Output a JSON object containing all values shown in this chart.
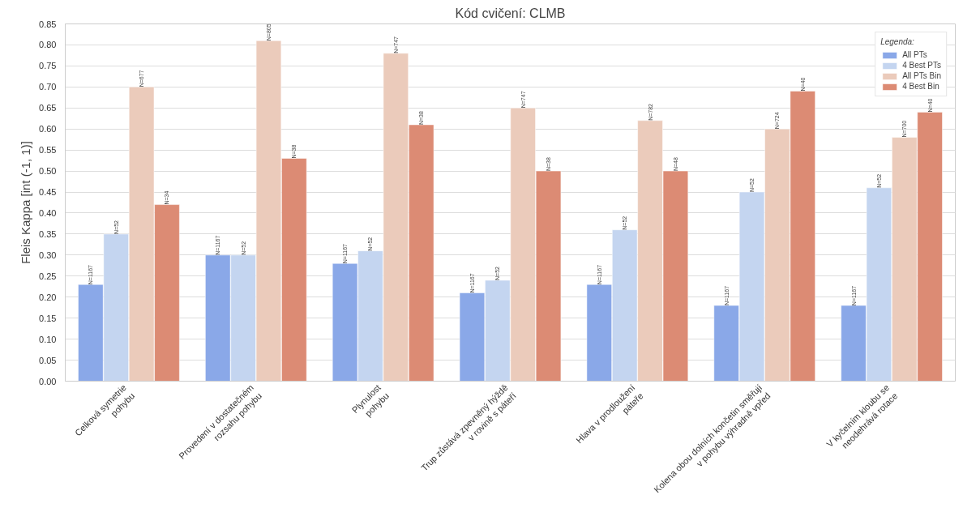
{
  "chart_data": {
    "type": "bar",
    "title": "Kód cvičení: CLMB",
    "ylabel": "Fleis Kappa [int (-1, 1)]",
    "legend_title": "Legenda:",
    "categories": [
      "Celková symetrie\npohybu",
      "Provedení v dostatečném\nrozsahu pohybu",
      "Plynulost\npohybu",
      "Trup zůstává zpevněný hýždě\nv rovině s páteří",
      "Hlava v prodloužení\npáteře",
      "Kolena obou dolních končetin směřují\nv pohybu výhradně vpřed",
      "V kyčelním kloubu se\nneodehrává rotace"
    ],
    "series": [
      {
        "name": "All PTs",
        "color": "#8aa8e8",
        "values": [
          0.23,
          0.3,
          0.28,
          0.21,
          0.23,
          0.18,
          0.18
        ]
      },
      {
        "name": "4 Best PTs",
        "color": "#c4d5f0",
        "values": [
          0.35,
          0.3,
          0.31,
          0.24,
          0.36,
          0.45,
          0.46
        ]
      },
      {
        "name": "All PTs Bin",
        "color": "#ebcbbb",
        "values": [
          0.7,
          0.81,
          0.78,
          0.65,
          0.62,
          0.6,
          0.58
        ]
      },
      {
        "name": "4 Best Bin",
        "color": "#dc8b74",
        "values": [
          0.42,
          0.53,
          0.61,
          0.5,
          0.5,
          0.69,
          0.64
        ]
      }
    ],
    "annotations": [
      "N=1167",
      "N=1167",
      "N=1167",
      "N=1167",
      "N=1167",
      "N=1167",
      "N=1167",
      "N=52",
      "N=52",
      "N=52",
      "N=52",
      "N=52",
      "N=52",
      "N=52",
      "N=677",
      "N=805",
      "N=747",
      "N=747",
      "N=782",
      "N=724",
      "N=700",
      "N=34",
      "N=38",
      "N=38",
      "N=38",
      "N=48",
      "N=40",
      "N=40"
    ],
    "ylim": [
      0,
      0.85
    ],
    "yticks": [
      {
        "value": 0,
        "label": "0.00"
      },
      {
        "value": 0.05,
        "label": "0.05"
      },
      {
        "value": 0.1,
        "label": "0.10"
      },
      {
        "value": 0.15,
        "label": "0.15"
      },
      {
        "value": 0.2,
        "label": "0.20"
      },
      {
        "value": 0.25,
        "label": "0.25"
      },
      {
        "value": 0.3,
        "label": "0.30"
      },
      {
        "value": 0.35,
        "label": "0.35"
      },
      {
        "value": 0.4,
        "label": "0.40"
      },
      {
        "value": 0.45,
        "label": "0.45"
      },
      {
        "value": 0.5,
        "label": "0.50"
      },
      {
        "value": 0.55,
        "label": "0.55"
      },
      {
        "value": 0.6,
        "label": "0.60"
      },
      {
        "value": 0.65,
        "label": "0.65"
      },
      {
        "value": 0.7,
        "label": "0.70"
      },
      {
        "value": 0.75,
        "label": "0.75"
      },
      {
        "value": 0.8,
        "label": "0.80"
      },
      {
        "value": 0.85,
        "label": "0.85"
      }
    ],
    "grid": "y",
    "legend": "top right"
  }
}
